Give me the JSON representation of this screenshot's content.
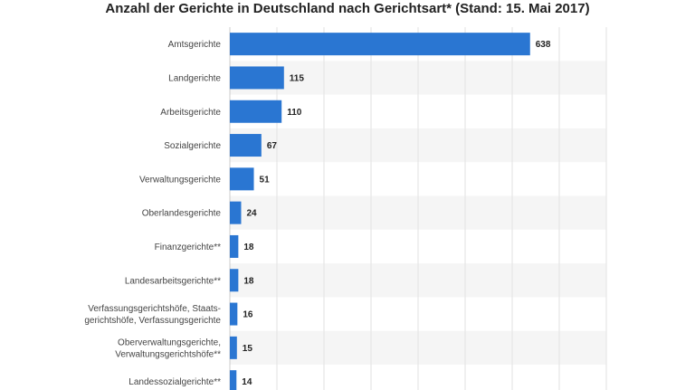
{
  "colors": {
    "bar": "#2a76d2",
    "band": "#f5f5f5",
    "grid": "#e2e2e2"
  },
  "chart_data": {
    "type": "bar",
    "orientation": "horizontal",
    "title": "Anzahl der Gerichte in Deutschland nach Gerichtsart* (Stand: 15. Mai 2017)",
    "xlabel": "",
    "ylabel": "",
    "xlim": [
      0,
      800
    ],
    "grid": true,
    "categories": [
      "Amtsgerichte",
      "Landgerichte",
      "Arbeitsgerichte",
      "Sozialgerichte",
      "Verwaltungsgerichte",
      "Oberlandesgerichte",
      "Finanzgerichte**",
      "Landesarbeitsgerichte**",
      "Verfassungsgerichtshöfe, Staats-\ngerichtshöfe, Verfassungsgerichte",
      "Oberverwaltungsgerichte,\nVerwaltungsgerichtshöfe**",
      "Landessozialgerichte**"
    ],
    "values": [
      638,
      115,
      110,
      67,
      51,
      24,
      18,
      18,
      16,
      15,
      14
    ]
  }
}
